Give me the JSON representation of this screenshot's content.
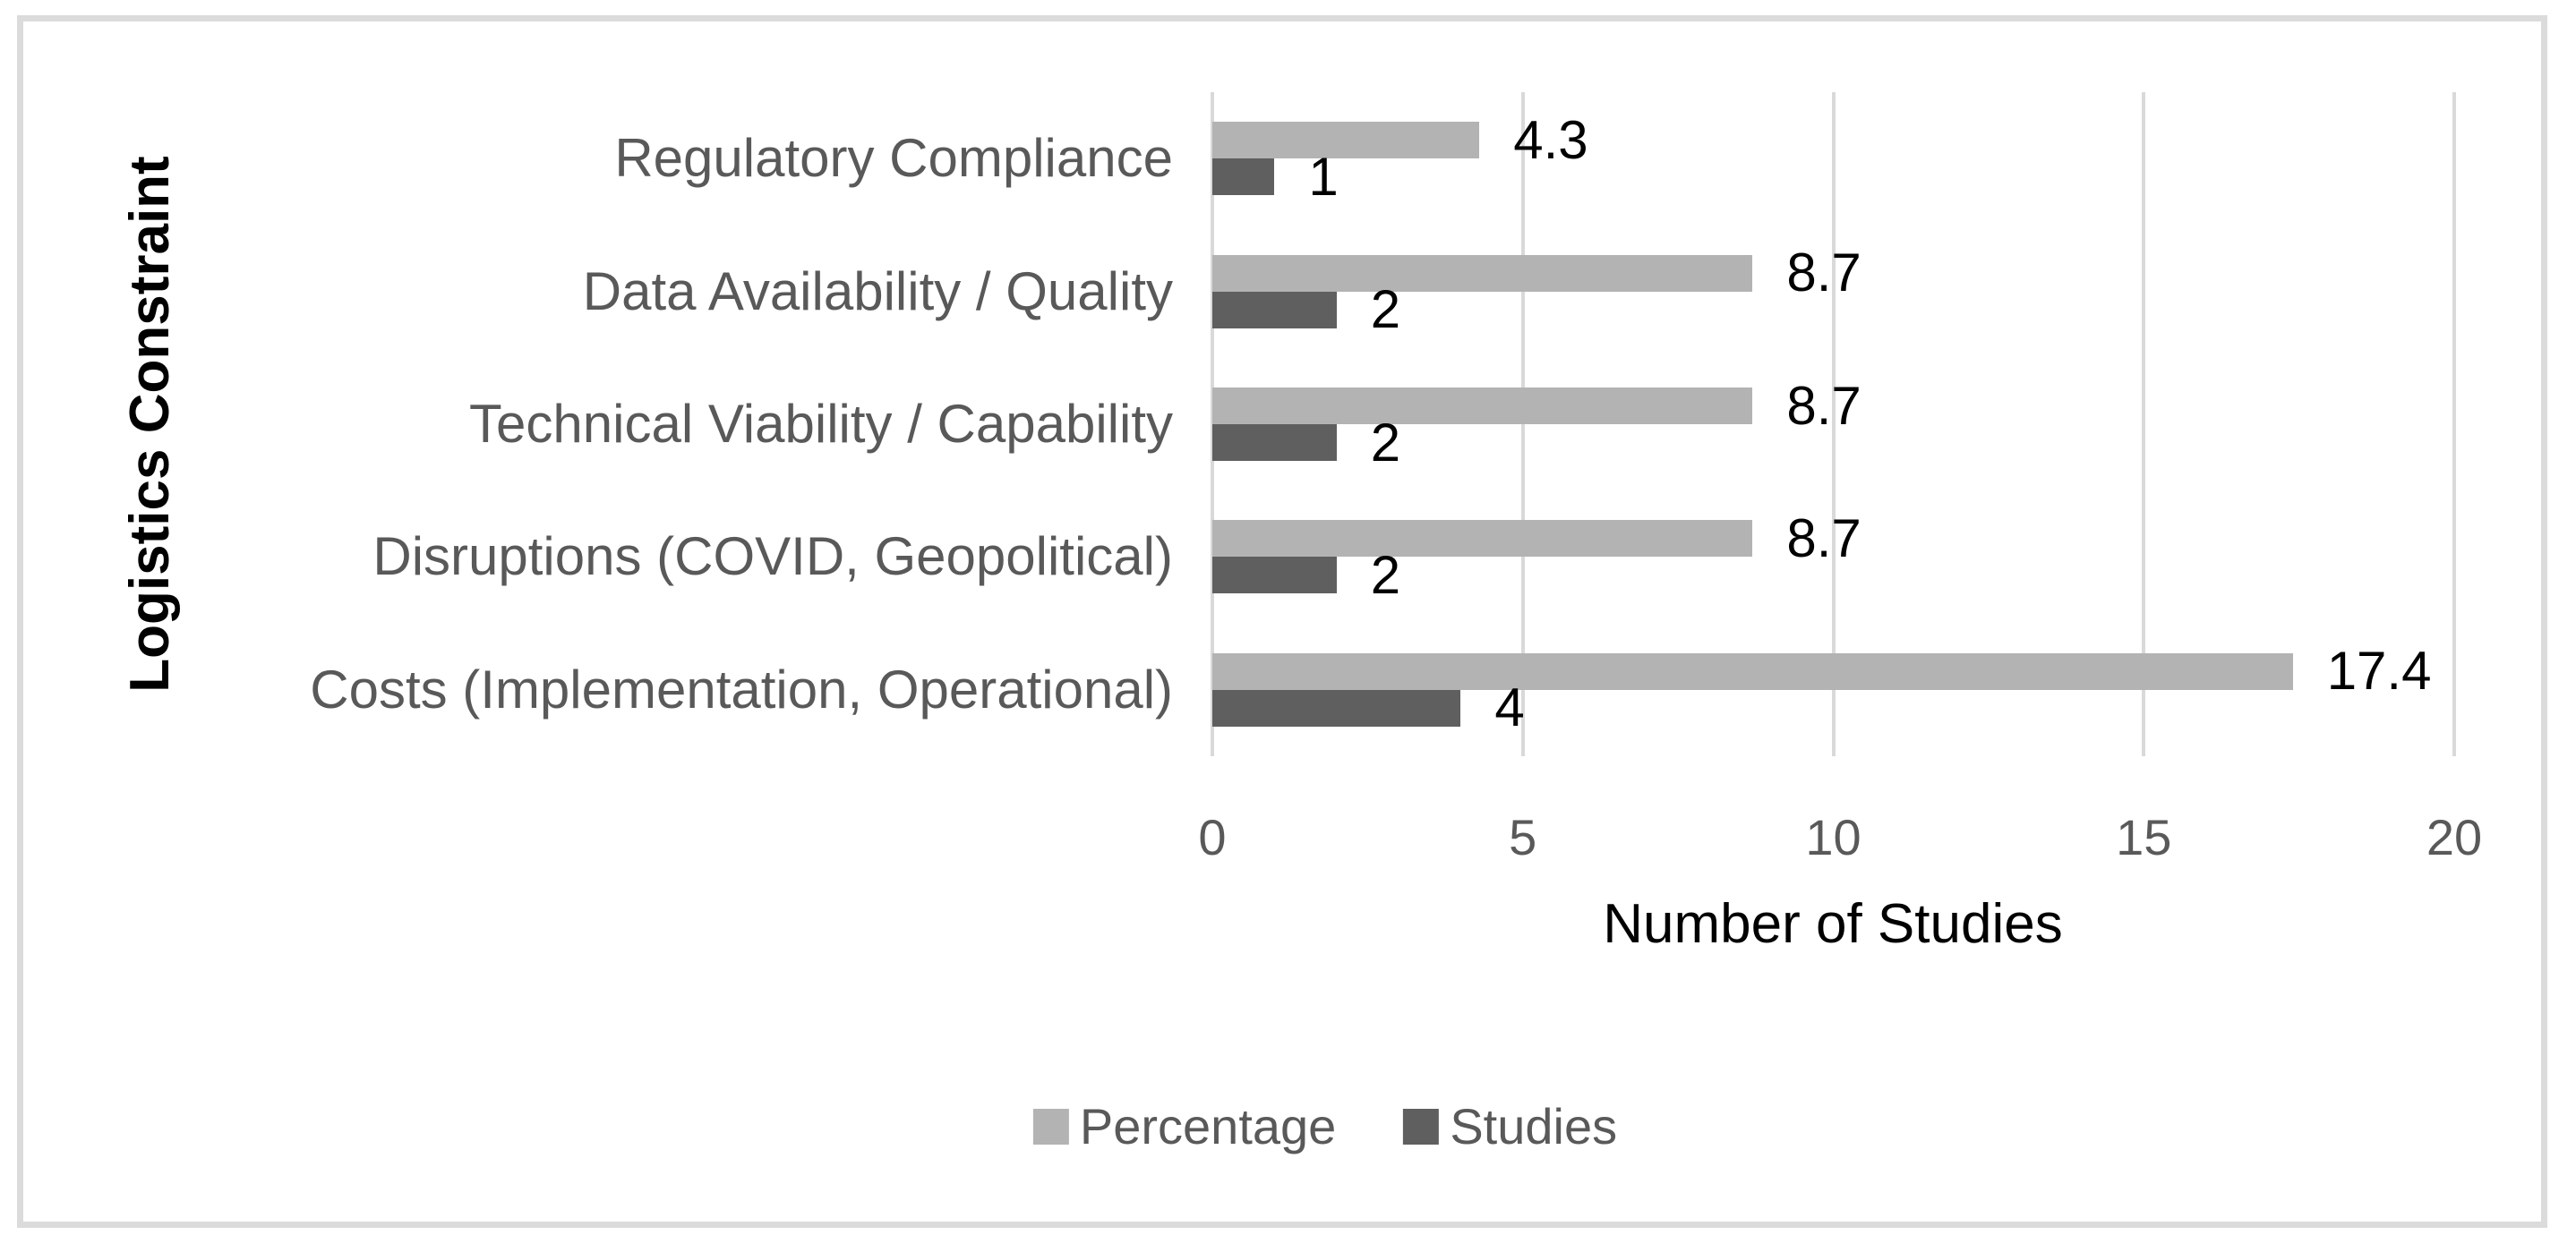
{
  "styles": {
    "background": "#ffffff",
    "frame_border": "#dbdbdb",
    "gridline": "#d9d9d9",
    "category_text": "#595959",
    "tick_text": "#595959",
    "data_label_text": "#000000",
    "axis_title_text": "#000000",
    "legend_text": "#595959"
  },
  "chart_data": {
    "type": "bar",
    "orientation": "horizontal",
    "title": "",
    "xlabel": "Number of Studies",
    "ylabel": "Logistics Constraint",
    "xlim": [
      0,
      20
    ],
    "xticks": [
      "0",
      "5",
      "10",
      "15",
      "20"
    ],
    "xtick_values": [
      0,
      5,
      10,
      15,
      20
    ],
    "grid": true,
    "legend_position": "bottom-center",
    "categories": [
      "Regulatory Compliance",
      "Data Availability / Quality",
      "Technical Viability / Capability",
      "Disruptions (COVID, Geopolitical)",
      "Costs (Implementation, Operational)"
    ],
    "series": [
      {
        "name": "Percentage",
        "color": "#b3b3b3",
        "values": [
          4.3,
          8.7,
          8.7,
          8.7,
          17.4
        ],
        "labels": [
          "4.3",
          "8.7",
          "8.7",
          "8.7",
          "17.4"
        ]
      },
      {
        "name": "Studies",
        "color": "#5f5f5f",
        "values": [
          1,
          2,
          2,
          2,
          4
        ],
        "labels": [
          "1",
          "2",
          "2",
          "2",
          "4"
        ]
      }
    ]
  }
}
